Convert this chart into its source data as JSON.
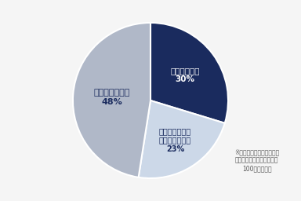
{
  "slices": [
    30,
    23,
    48
  ],
  "colors": [
    "#1a2b5e",
    "#ccd8e8",
    "#b0b8c8"
  ],
  "labels": [
    "満たしている\n30%",
    "雇用しているが\n雇用率は未達成\n23%",
    "採用していない\n48%"
  ],
  "label_colors": [
    "#ffffff",
    "#1a2b5e",
    "#1a2b5e"
  ],
  "start_angle": 90,
  "note": "※小数点以下を四捨五入し\nてるため、必ずしも合計が\n100にならない",
  "background_color": "#f5f5f5"
}
